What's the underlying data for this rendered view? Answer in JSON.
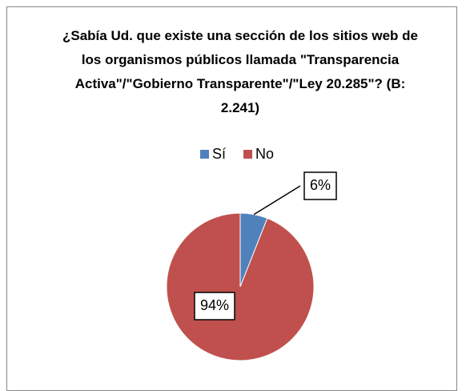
{
  "chart_data": {
    "type": "pie",
    "title": "¿Sabía Ud. que existe una sección de los sitios web de los organismos públicos llamada \"Transparencia Activa\"/\"Gobierno Transparente\"/\"Ley 20.285\"? (B: 2.241)",
    "categories": [
      "Sí",
      "No"
    ],
    "values": [
      6,
      94
    ],
    "value_labels": [
      "6%",
      "94%"
    ],
    "colors": [
      "#4f81bd",
      "#c0504d"
    ],
    "legend": "top"
  }
}
